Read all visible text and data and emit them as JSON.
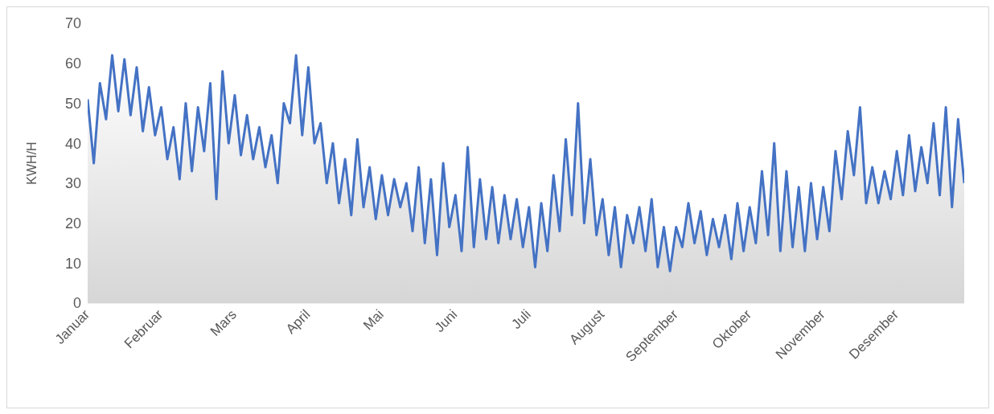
{
  "chart_data": {
    "type": "area",
    "ylabel": "KWH/H",
    "ylim": [
      0,
      70
    ],
    "yticks": [
      0,
      10,
      20,
      30,
      40,
      50,
      60,
      70
    ],
    "grid": false,
    "legend": false,
    "categories": [
      "Januar",
      null,
      null,
      null,
      null,
      null,
      null,
      null,
      null,
      null,
      null,
      null,
      "Februar",
      null,
      null,
      null,
      null,
      null,
      null,
      null,
      null,
      null,
      null,
      null,
      "Mars",
      null,
      null,
      null,
      null,
      null,
      null,
      null,
      null,
      null,
      null,
      null,
      "April",
      null,
      null,
      null,
      null,
      null,
      null,
      null,
      null,
      null,
      null,
      null,
      "Mai",
      null,
      null,
      null,
      null,
      null,
      null,
      null,
      null,
      null,
      null,
      null,
      "Juni",
      null,
      null,
      null,
      null,
      null,
      null,
      null,
      null,
      null,
      null,
      null,
      "Juli",
      null,
      null,
      null,
      null,
      null,
      null,
      null,
      null,
      null,
      null,
      null,
      "August",
      null,
      null,
      null,
      null,
      null,
      null,
      null,
      null,
      null,
      null,
      null,
      "September",
      null,
      null,
      null,
      null,
      null,
      null,
      null,
      null,
      null,
      null,
      null,
      "Oktober",
      null,
      null,
      null,
      null,
      null,
      null,
      null,
      null,
      null,
      null,
      null,
      "November",
      null,
      null,
      null,
      null,
      null,
      null,
      null,
      null,
      null,
      null,
      null,
      "Desember",
      null,
      null,
      null,
      null,
      null,
      null,
      null,
      null,
      null,
      null,
      null
    ],
    "series": [
      {
        "color": "#4472c4",
        "values": [
          51,
          35,
          55,
          46,
          62,
          48,
          61,
          47,
          59,
          43,
          54,
          42,
          49,
          36,
          44,
          31,
          50,
          33,
          49,
          38,
          55,
          26,
          58,
          40,
          52,
          37,
          47,
          36,
          44,
          34,
          42,
          30,
          50,
          45,
          62,
          42,
          59,
          40,
          45,
          30,
          40,
          25,
          36,
          22,
          41,
          24,
          34,
          21,
          32,
          22,
          31,
          24,
          30,
          18,
          34,
          15,
          31,
          12,
          35,
          19,
          27,
          13,
          39,
          14,
          31,
          16,
          29,
          15,
          27,
          16,
          26,
          14,
          24,
          9,
          25,
          13,
          32,
          18,
          41,
          22,
          50,
          20,
          36,
          17,
          26,
          12,
          24,
          9,
          22,
          15,
          24,
          13,
          26,
          9,
          19,
          8,
          19,
          14,
          25,
          15,
          23,
          12,
          21,
          14,
          22,
          11,
          25,
          13,
          24,
          15,
          33,
          17,
          40,
          13,
          33,
          14,
          29,
          13,
          30,
          16,
          29,
          18,
          38,
          26,
          43,
          32,
          49,
          25,
          34,
          25,
          33,
          26,
          38,
          27,
          42,
          28,
          39,
          30,
          45,
          27,
          49,
          24,
          46,
          30
        ]
      }
    ]
  }
}
